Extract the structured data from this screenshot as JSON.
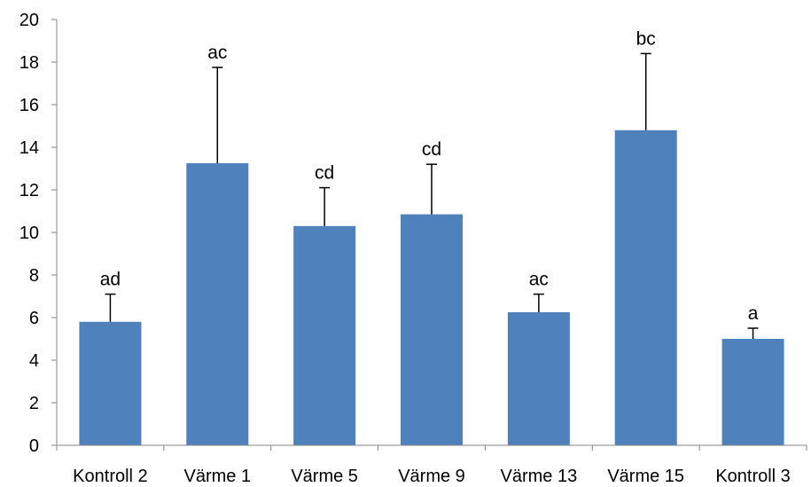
{
  "chart_data": {
    "type": "bar",
    "title": "",
    "xlabel": "",
    "ylabel": "",
    "categories": [
      "Kontroll 2",
      "Värme 1",
      "Värme 5",
      "Värme 9",
      "Värme 13",
      "Värme 15",
      "Kontroll 3"
    ],
    "values": [
      5.8,
      13.25,
      10.3,
      10.85,
      6.25,
      14.8,
      5.0
    ],
    "errors": [
      1.3,
      4.5,
      1.8,
      2.35,
      0.85,
      3.6,
      0.5
    ],
    "annotations": [
      "ad",
      "ac",
      "cd",
      "cd",
      "ac",
      "bc",
      "a"
    ],
    "ylim": [
      0,
      20
    ],
    "yticks": [
      0,
      2,
      4,
      6,
      8,
      10,
      12,
      14,
      16,
      18,
      20
    ],
    "grid": false,
    "legend": "none",
    "colors": {
      "bar": "#4F81BD",
      "axis": "#868686",
      "error_bar": "#000000"
    }
  }
}
